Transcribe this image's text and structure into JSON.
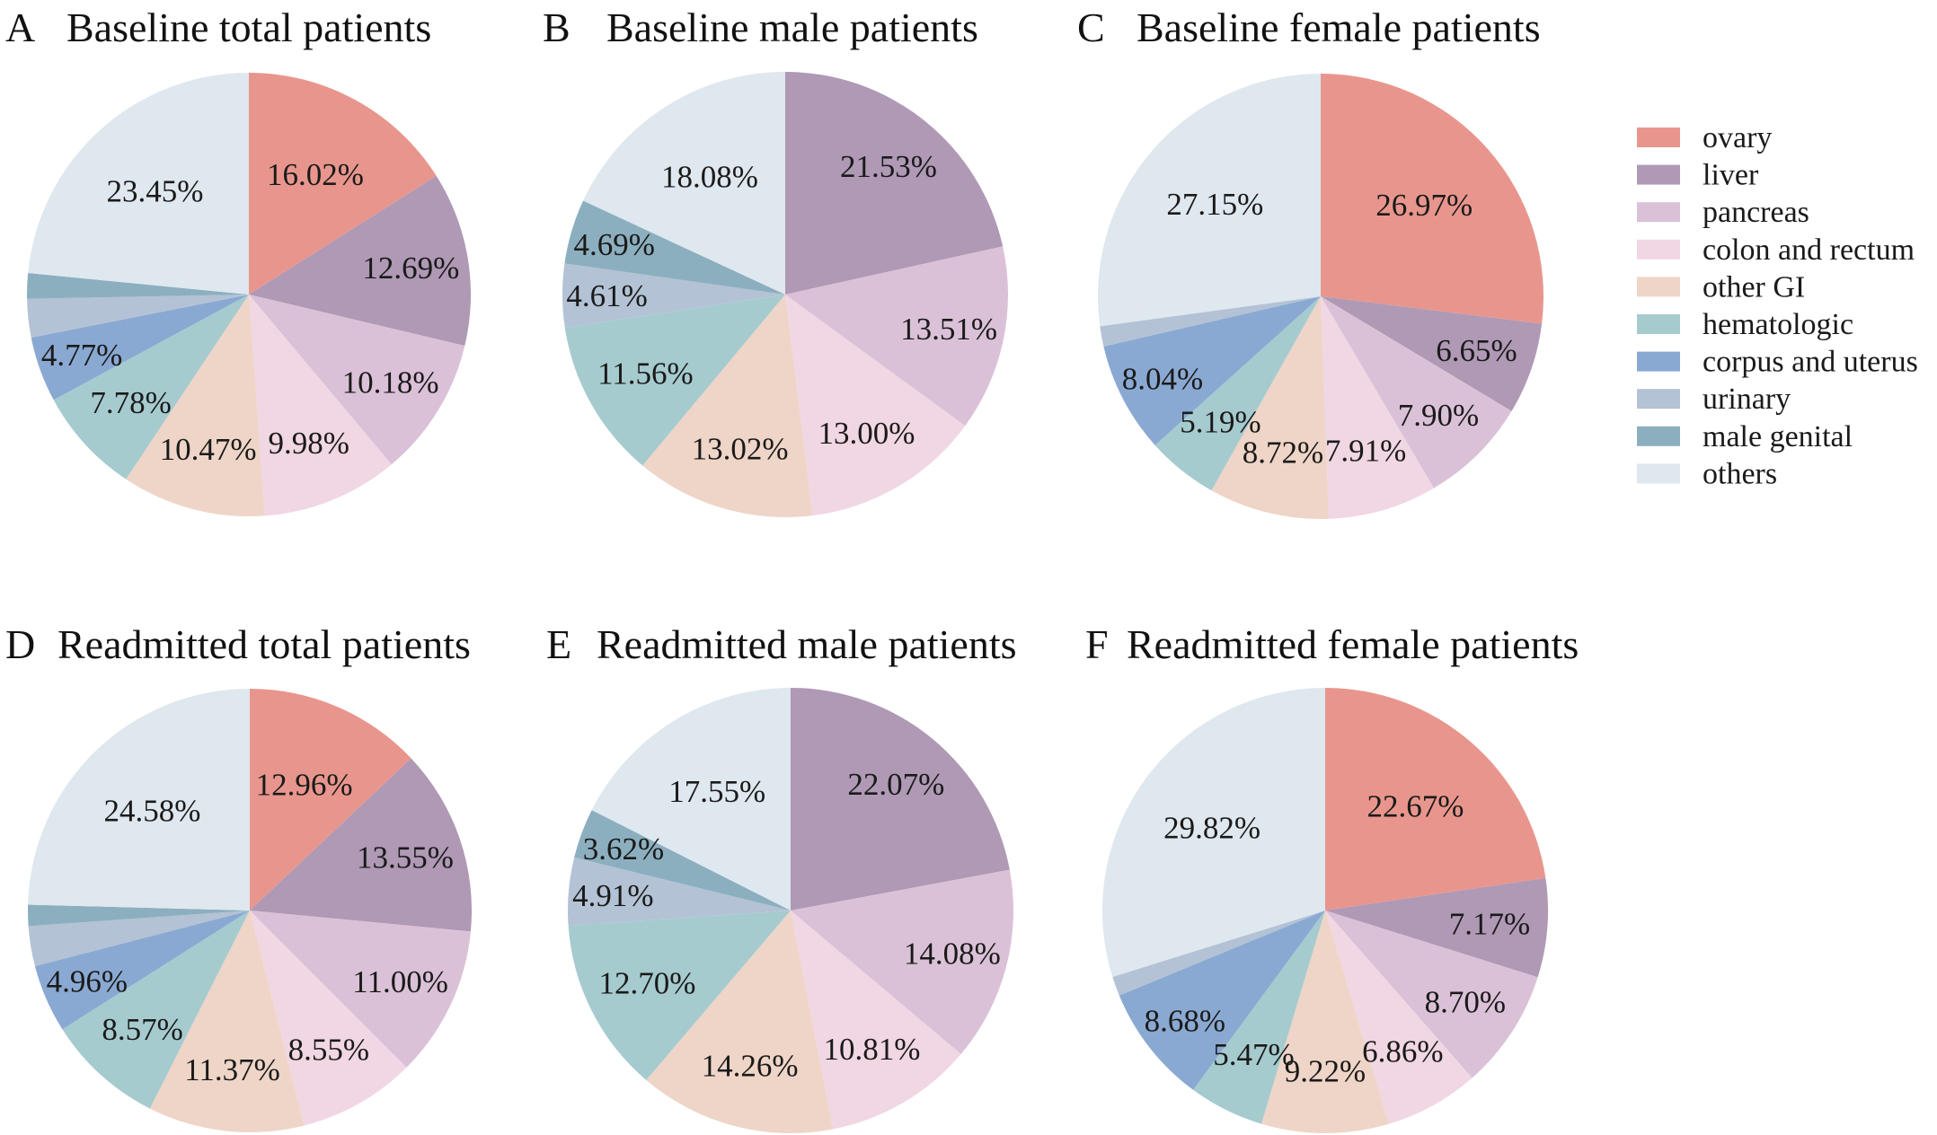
{
  "legend": {
    "items": [
      {
        "label": "ovary",
        "color": "#E8968D"
      },
      {
        "label": "liver",
        "color": "#AF99B5"
      },
      {
        "label": "pancreas",
        "color": "#DBC1D7"
      },
      {
        "label": "colon and rectum",
        "color": "#F1D6E3"
      },
      {
        "label": "other GI",
        "color": "#EED5C7"
      },
      {
        "label": "hematologic",
        "color": "#A6CBCF"
      },
      {
        "label": "corpus and uterus",
        "color": "#8AA9D2"
      },
      {
        "label": "urinary",
        "color": "#B3C2D5"
      },
      {
        "label": "male genital",
        "color": "#8CAFBF"
      },
      {
        "label": "others",
        "color": "#DFE7EF"
      }
    ]
  },
  "chart_data": [
    {
      "type": "pie",
      "letter": "A",
      "title": "Baseline total patients",
      "start": "12 o'clock",
      "direction": "clockwise",
      "slices": [
        {
          "category": "ovary",
          "value": 16.02,
          "label": "16.02%"
        },
        {
          "category": "liver",
          "value": 12.69,
          "label": "12.69%"
        },
        {
          "category": "pancreas",
          "value": 10.18,
          "label": "10.18%"
        },
        {
          "category": "colon and rectum",
          "value": 9.98,
          "label": "9.98%"
        },
        {
          "category": "other GI",
          "value": 10.47,
          "label": "10.47%"
        },
        {
          "category": "hematologic",
          "value": 7.78,
          "label": "7.78%"
        },
        {
          "category": "corpus and uterus",
          "value": 4.77,
          "label": "4.77%"
        },
        {
          "category": "urinary",
          "value": 2.8,
          "label": ""
        },
        {
          "category": "male genital",
          "value": 1.86,
          "label": ""
        },
        {
          "category": "others",
          "value": 23.45,
          "label": "23.45%"
        }
      ]
    },
    {
      "type": "pie",
      "letter": "B",
      "title": "Baseline male patients",
      "start": "12 o'clock",
      "direction": "clockwise",
      "slices": [
        {
          "category": "ovary",
          "value": 0,
          "label": ""
        },
        {
          "category": "liver",
          "value": 21.53,
          "label": "21.53%"
        },
        {
          "category": "pancreas",
          "value": 13.51,
          "label": "13.51%"
        },
        {
          "category": "colon and rectum",
          "value": 13.0,
          "label": "13.00%"
        },
        {
          "category": "other GI",
          "value": 13.02,
          "label": "13.02%"
        },
        {
          "category": "hematologic",
          "value": 11.56,
          "label": "11.56%"
        },
        {
          "category": "corpus and uterus",
          "value": 0,
          "label": ""
        },
        {
          "category": "urinary",
          "value": 4.61,
          "label": "4.61%"
        },
        {
          "category": "male genital",
          "value": 4.69,
          "label": "4.69%"
        },
        {
          "category": "others",
          "value": 18.08,
          "label": "18.08%"
        }
      ]
    },
    {
      "type": "pie",
      "letter": "C",
      "title": "Baseline female patients",
      "start": "12 o'clock",
      "direction": "clockwise",
      "slices": [
        {
          "category": "ovary",
          "value": 26.97,
          "label": "26.97%"
        },
        {
          "category": "liver",
          "value": 6.65,
          "label": "6.65%"
        },
        {
          "category": "pancreas",
          "value": 7.9,
          "label": "7.90%"
        },
        {
          "category": "colon and rectum",
          "value": 7.91,
          "label": "7.91%"
        },
        {
          "category": "other GI",
          "value": 8.72,
          "label": "8.72%"
        },
        {
          "category": "hematologic",
          "value": 5.19,
          "label": "5.19%"
        },
        {
          "category": "corpus and uterus",
          "value": 8.04,
          "label": "8.04%"
        },
        {
          "category": "urinary",
          "value": 1.47,
          "label": ""
        },
        {
          "category": "male genital",
          "value": 0,
          "label": ""
        },
        {
          "category": "others",
          "value": 27.15,
          "label": "27.15%"
        }
      ]
    },
    {
      "type": "pie",
      "letter": "D",
      "title": "Readmitted total patients",
      "start": "12 o'clock",
      "direction": "clockwise",
      "slices": [
        {
          "category": "ovary",
          "value": 12.96,
          "label": "12.96%"
        },
        {
          "category": "liver",
          "value": 13.55,
          "label": "13.55%"
        },
        {
          "category": "pancreas",
          "value": 11.0,
          "label": "11.00%"
        },
        {
          "category": "colon and rectum",
          "value": 8.55,
          "label": "8.55%"
        },
        {
          "category": "other GI",
          "value": 11.37,
          "label": "11.37%"
        },
        {
          "category": "hematologic",
          "value": 8.57,
          "label": "8.57%"
        },
        {
          "category": "corpus and uterus",
          "value": 4.96,
          "label": "4.96%"
        },
        {
          "category": "urinary",
          "value": 2.92,
          "label": ""
        },
        {
          "category": "male genital",
          "value": 1.54,
          "label": ""
        },
        {
          "category": "others",
          "value": 24.58,
          "label": "24.58%"
        }
      ]
    },
    {
      "type": "pie",
      "letter": "E",
      "title": "Readmitted male patients",
      "start": "12 o'clock",
      "direction": "clockwise",
      "slices": [
        {
          "category": "ovary",
          "value": 0,
          "label": ""
        },
        {
          "category": "liver",
          "value": 22.07,
          "label": "22.07%"
        },
        {
          "category": "pancreas",
          "value": 14.08,
          "label": "14.08%"
        },
        {
          "category": "colon and rectum",
          "value": 10.81,
          "label": "10.81%"
        },
        {
          "category": "other GI",
          "value": 14.26,
          "label": "14.26%"
        },
        {
          "category": "hematologic",
          "value": 12.7,
          "label": "12.70%"
        },
        {
          "category": "corpus and uterus",
          "value": 0,
          "label": ""
        },
        {
          "category": "urinary",
          "value": 4.91,
          "label": "4.91%"
        },
        {
          "category": "male genital",
          "value": 3.62,
          "label": "3.62%"
        },
        {
          "category": "others",
          "value": 17.55,
          "label": "17.55%"
        }
      ]
    },
    {
      "type": "pie",
      "letter": "F",
      "title": "Readmitted female patients",
      "start": "12 o'clock",
      "direction": "clockwise",
      "slices": [
        {
          "category": "ovary",
          "value": 22.67,
          "label": "22.67%"
        },
        {
          "category": "liver",
          "value": 7.17,
          "label": "7.17%"
        },
        {
          "category": "pancreas",
          "value": 8.7,
          "label": "8.70%"
        },
        {
          "category": "colon and rectum",
          "value": 6.86,
          "label": "6.86%"
        },
        {
          "category": "other GI",
          "value": 9.22,
          "label": "9.22%"
        },
        {
          "category": "hematologic",
          "value": 5.47,
          "label": "5.47%"
        },
        {
          "category": "corpus and uterus",
          "value": 8.68,
          "label": "8.68%"
        },
        {
          "category": "urinary",
          "value": 1.41,
          "label": ""
        },
        {
          "category": "male genital",
          "value": 0,
          "label": ""
        },
        {
          "category": "others",
          "value": 29.82,
          "label": "29.82%"
        }
      ]
    }
  ]
}
